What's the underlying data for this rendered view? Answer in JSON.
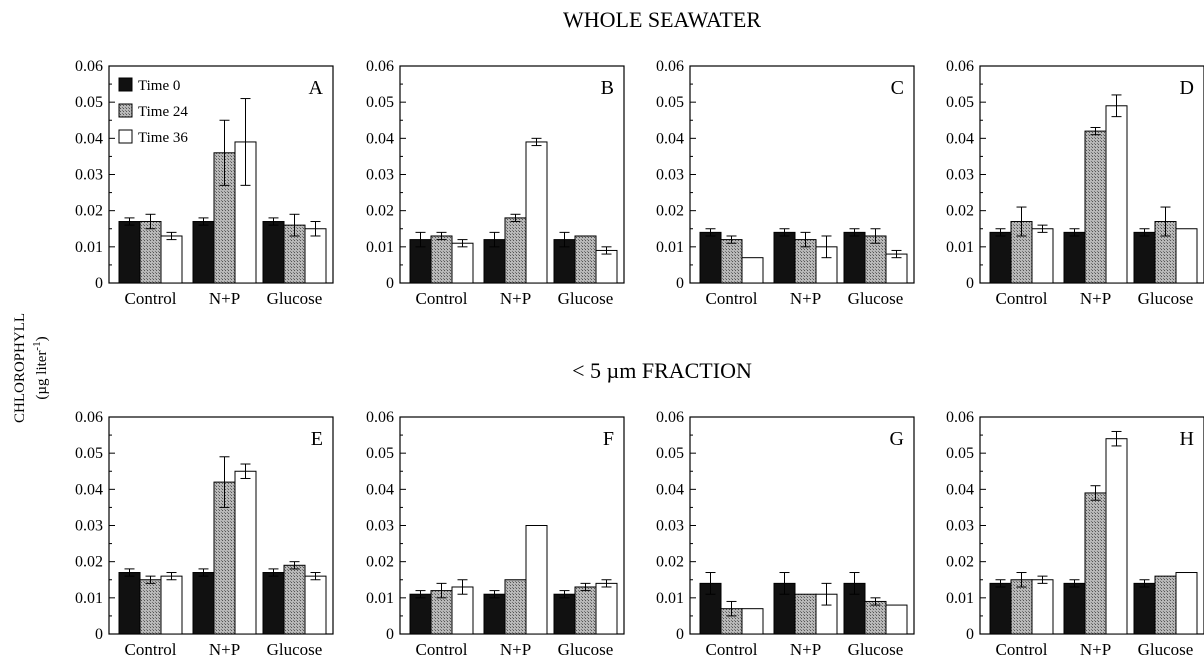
{
  "section_titles": [
    "WHOLE SEAWATER",
    "< 5 µm FRACTION"
  ],
  "ylabel": {
    "line1": "CHLOROPHYLL",
    "line2": "(µg liter",
    "sup": "-1",
    "close": ")"
  },
  "chart_data": [
    {
      "type": "bar",
      "panel": "A",
      "categories": [
        "Control",
        "N+P",
        "Glucose"
      ],
      "ylim": [
        0,
        0.06
      ],
      "yticks": [
        "0",
        "0.01",
        "0.02",
        "0.03",
        "0.04",
        "0.05",
        "0.06"
      ],
      "series": [
        {
          "name": "Time 0",
          "values": [
            0.017,
            0.017,
            0.017
          ],
          "errors": [
            0.001,
            0.001,
            0.001
          ]
        },
        {
          "name": "Time 24",
          "values": [
            0.017,
            0.036,
            0.016
          ],
          "errors": [
            0.002,
            0.009,
            0.003
          ]
        },
        {
          "name": "Time 36",
          "values": [
            0.013,
            0.039,
            0.015
          ],
          "errors": [
            0.001,
            0.012,
            0.002
          ]
        }
      ]
    },
    {
      "type": "bar",
      "panel": "B",
      "categories": [
        "Control",
        "N+P",
        "Glucose"
      ],
      "ylim": [
        0,
        0.06
      ],
      "yticks": [
        "0",
        "0.01",
        "0.02",
        "0.03",
        "0.04",
        "0.05",
        "0.06"
      ],
      "series": [
        {
          "name": "Time 0",
          "values": [
            0.012,
            0.012,
            0.012
          ],
          "errors": [
            0.002,
            0.002,
            0.002
          ]
        },
        {
          "name": "Time 24",
          "values": [
            0.013,
            0.018,
            0.013
          ],
          "errors": [
            0.001,
            0.001,
            0
          ]
        },
        {
          "name": "Time 36",
          "values": [
            0.011,
            0.039,
            0.009
          ],
          "errors": [
            0.001,
            0.001,
            0.001
          ]
        }
      ]
    },
    {
      "type": "bar",
      "panel": "C",
      "categories": [
        "Control",
        "N+P",
        "Glucose"
      ],
      "ylim": [
        0,
        0.06
      ],
      "yticks": [
        "0",
        "0.01",
        "0.02",
        "0.03",
        "0.04",
        "0.05",
        "0.06"
      ],
      "series": [
        {
          "name": "Time 0",
          "values": [
            0.014,
            0.014,
            0.014
          ],
          "errors": [
            0.001,
            0.001,
            0.001
          ]
        },
        {
          "name": "Time 24",
          "values": [
            0.012,
            0.012,
            0.013
          ],
          "errors": [
            0.001,
            0.002,
            0.002
          ]
        },
        {
          "name": "Time 36",
          "values": [
            0.007,
            0.01,
            0.008
          ],
          "errors": [
            0,
            0.003,
            0.001
          ]
        }
      ]
    },
    {
      "type": "bar",
      "panel": "D",
      "categories": [
        "Control",
        "N+P",
        "Glucose"
      ],
      "ylim": [
        0,
        0.06
      ],
      "yticks": [
        "0",
        "0.01",
        "0.02",
        "0.03",
        "0.04",
        "0.05",
        "0.06"
      ],
      "series": [
        {
          "name": "Time 0",
          "values": [
            0.014,
            0.014,
            0.014
          ],
          "errors": [
            0.001,
            0.001,
            0.001
          ]
        },
        {
          "name": "Time 24",
          "values": [
            0.017,
            0.042,
            0.017
          ],
          "errors": [
            0.004,
            0.001,
            0.004
          ]
        },
        {
          "name": "Time 36",
          "values": [
            0.015,
            0.049,
            0.015
          ],
          "errors": [
            0.001,
            0.003,
            0
          ]
        }
      ]
    },
    {
      "type": "bar",
      "panel": "E",
      "categories": [
        "Control",
        "N+P",
        "Glucose"
      ],
      "ylim": [
        0,
        0.06
      ],
      "yticks": [
        "0",
        "0.01",
        "0.02",
        "0.03",
        "0.04",
        "0.05",
        "0.06"
      ],
      "series": [
        {
          "name": "Time 0",
          "values": [
            0.017,
            0.017,
            0.017
          ],
          "errors": [
            0.001,
            0.001,
            0.001
          ]
        },
        {
          "name": "Time 24",
          "values": [
            0.015,
            0.042,
            0.019
          ],
          "errors": [
            0.001,
            0.007,
            0.001
          ]
        },
        {
          "name": "Time 36",
          "values": [
            0.016,
            0.045,
            0.016
          ],
          "errors": [
            0.001,
            0.002,
            0.001
          ]
        }
      ]
    },
    {
      "type": "bar",
      "panel": "F",
      "categories": [
        "Control",
        "N+P",
        "Glucose"
      ],
      "ylim": [
        0,
        0.06
      ],
      "yticks": [
        "0",
        "0.01",
        "0.02",
        "0.03",
        "0.04",
        "0.05",
        "0.06"
      ],
      "series": [
        {
          "name": "Time 0",
          "values": [
            0.011,
            0.011,
            0.011
          ],
          "errors": [
            0.001,
            0.001,
            0.001
          ]
        },
        {
          "name": "Time 24",
          "values": [
            0.012,
            0.015,
            0.013
          ],
          "errors": [
            0.002,
            0,
            0.001
          ]
        },
        {
          "name": "Time 36",
          "values": [
            0.013,
            0.03,
            0.014
          ],
          "errors": [
            0.002,
            0,
            0.001
          ]
        }
      ]
    },
    {
      "type": "bar",
      "panel": "G",
      "categories": [
        "Control",
        "N+P",
        "Glucose"
      ],
      "ylim": [
        0,
        0.06
      ],
      "yticks": [
        "0",
        "0.01",
        "0.02",
        "0.03",
        "0.04",
        "0.05",
        "0.06"
      ],
      "series": [
        {
          "name": "Time 0",
          "values": [
            0.014,
            0.014,
            0.014
          ],
          "errors": [
            0.003,
            0.003,
            0.003
          ]
        },
        {
          "name": "Time 24",
          "values": [
            0.007,
            0.011,
            0.009
          ],
          "errors": [
            0.002,
            0,
            0.001
          ]
        },
        {
          "name": "Time 36",
          "values": [
            0.007,
            0.011,
            0.008
          ],
          "errors": [
            0,
            0.003,
            0
          ]
        }
      ]
    },
    {
      "type": "bar",
      "panel": "H",
      "categories": [
        "Control",
        "N+P",
        "Glucose"
      ],
      "ylim": [
        0,
        0.06
      ],
      "yticks": [
        "0",
        "0.01",
        "0.02",
        "0.03",
        "0.04",
        "0.05",
        "0.06"
      ],
      "series": [
        {
          "name": "Time 0",
          "values": [
            0.014,
            0.014,
            0.014
          ],
          "errors": [
            0.001,
            0.001,
            0.001
          ]
        },
        {
          "name": "Time 24",
          "values": [
            0.015,
            0.039,
            0.016
          ],
          "errors": [
            0.002,
            0.002,
            0
          ]
        },
        {
          "name": "Time 36",
          "values": [
            0.015,
            0.054,
            0.017
          ],
          "errors": [
            0.001,
            0.002,
            0
          ]
        }
      ]
    }
  ],
  "legend": {
    "panel": "A",
    "entries": [
      "Time 0",
      "Time 24",
      "Time 36"
    ]
  },
  "series_styles": [
    {
      "name": "Time 0",
      "fill": "#111111"
    },
    {
      "name": "Time 24",
      "fill": "#9a9a9a"
    },
    {
      "name": "Time 36",
      "fill": "#ffffff"
    }
  ]
}
